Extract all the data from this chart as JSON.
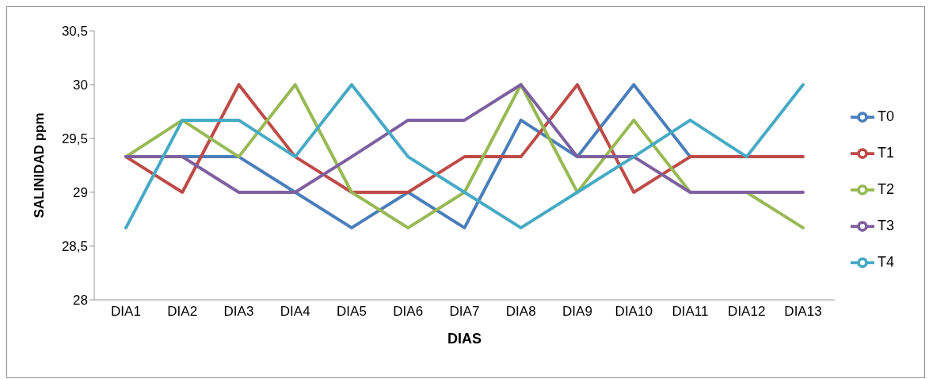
{
  "chart_data": {
    "type": "line",
    "xlabel": "DIAS",
    "ylabel": "SALINIDAD ppm",
    "categories": [
      "DIA1",
      "DIA2",
      "DIA3",
      "DIA4",
      "DIA5",
      "DIA6",
      "DIA7",
      "DIA8",
      "DIA9",
      "DIA10",
      "DIA11",
      "DIA12",
      "DIA13"
    ],
    "series": [
      {
        "name": "T0",
        "color": "#4a7ebb",
        "values": [
          29.33,
          29.33,
          29.33,
          29,
          28.67,
          29,
          28.67,
          29.67,
          29.33,
          30,
          29.33,
          null,
          null
        ]
      },
      {
        "name": "T1",
        "color": "#be4b48",
        "values": [
          29.33,
          29,
          30,
          29.33,
          29,
          29,
          29.33,
          29.33,
          30,
          29,
          29.33,
          29.33,
          29.33
        ]
      },
      {
        "name": "T2",
        "color": "#98b954",
        "values": [
          29.33,
          29.67,
          29.33,
          30,
          29,
          28.67,
          29,
          30,
          29,
          29.67,
          29,
          29,
          28.67
        ]
      },
      {
        "name": "T3",
        "color": "#7d60a0",
        "values": [
          29.33,
          29.33,
          29,
          29,
          29.33,
          29.67,
          29.67,
          30,
          29.33,
          29.33,
          29,
          29,
          29
        ]
      },
      {
        "name": "T4",
        "color": "#46aac5",
        "values": [
          28.67,
          29.67,
          29.67,
          29.33,
          30,
          29.33,
          29,
          28.67,
          29,
          29.33,
          29.67,
          29.33,
          30
        ]
      }
    ],
    "ylim": [
      28,
      30.5
    ],
    "yticks": [
      28,
      {
        "value": 28.5,
        "label": "28,5"
      },
      29,
      {
        "value": 29.5,
        "label": "29,5"
      },
      30,
      {
        "value": 30.5,
        "label": "30,5"
      }
    ],
    "grid": false,
    "legend": "right",
    "marker": "none",
    "line_style": "solid"
  }
}
